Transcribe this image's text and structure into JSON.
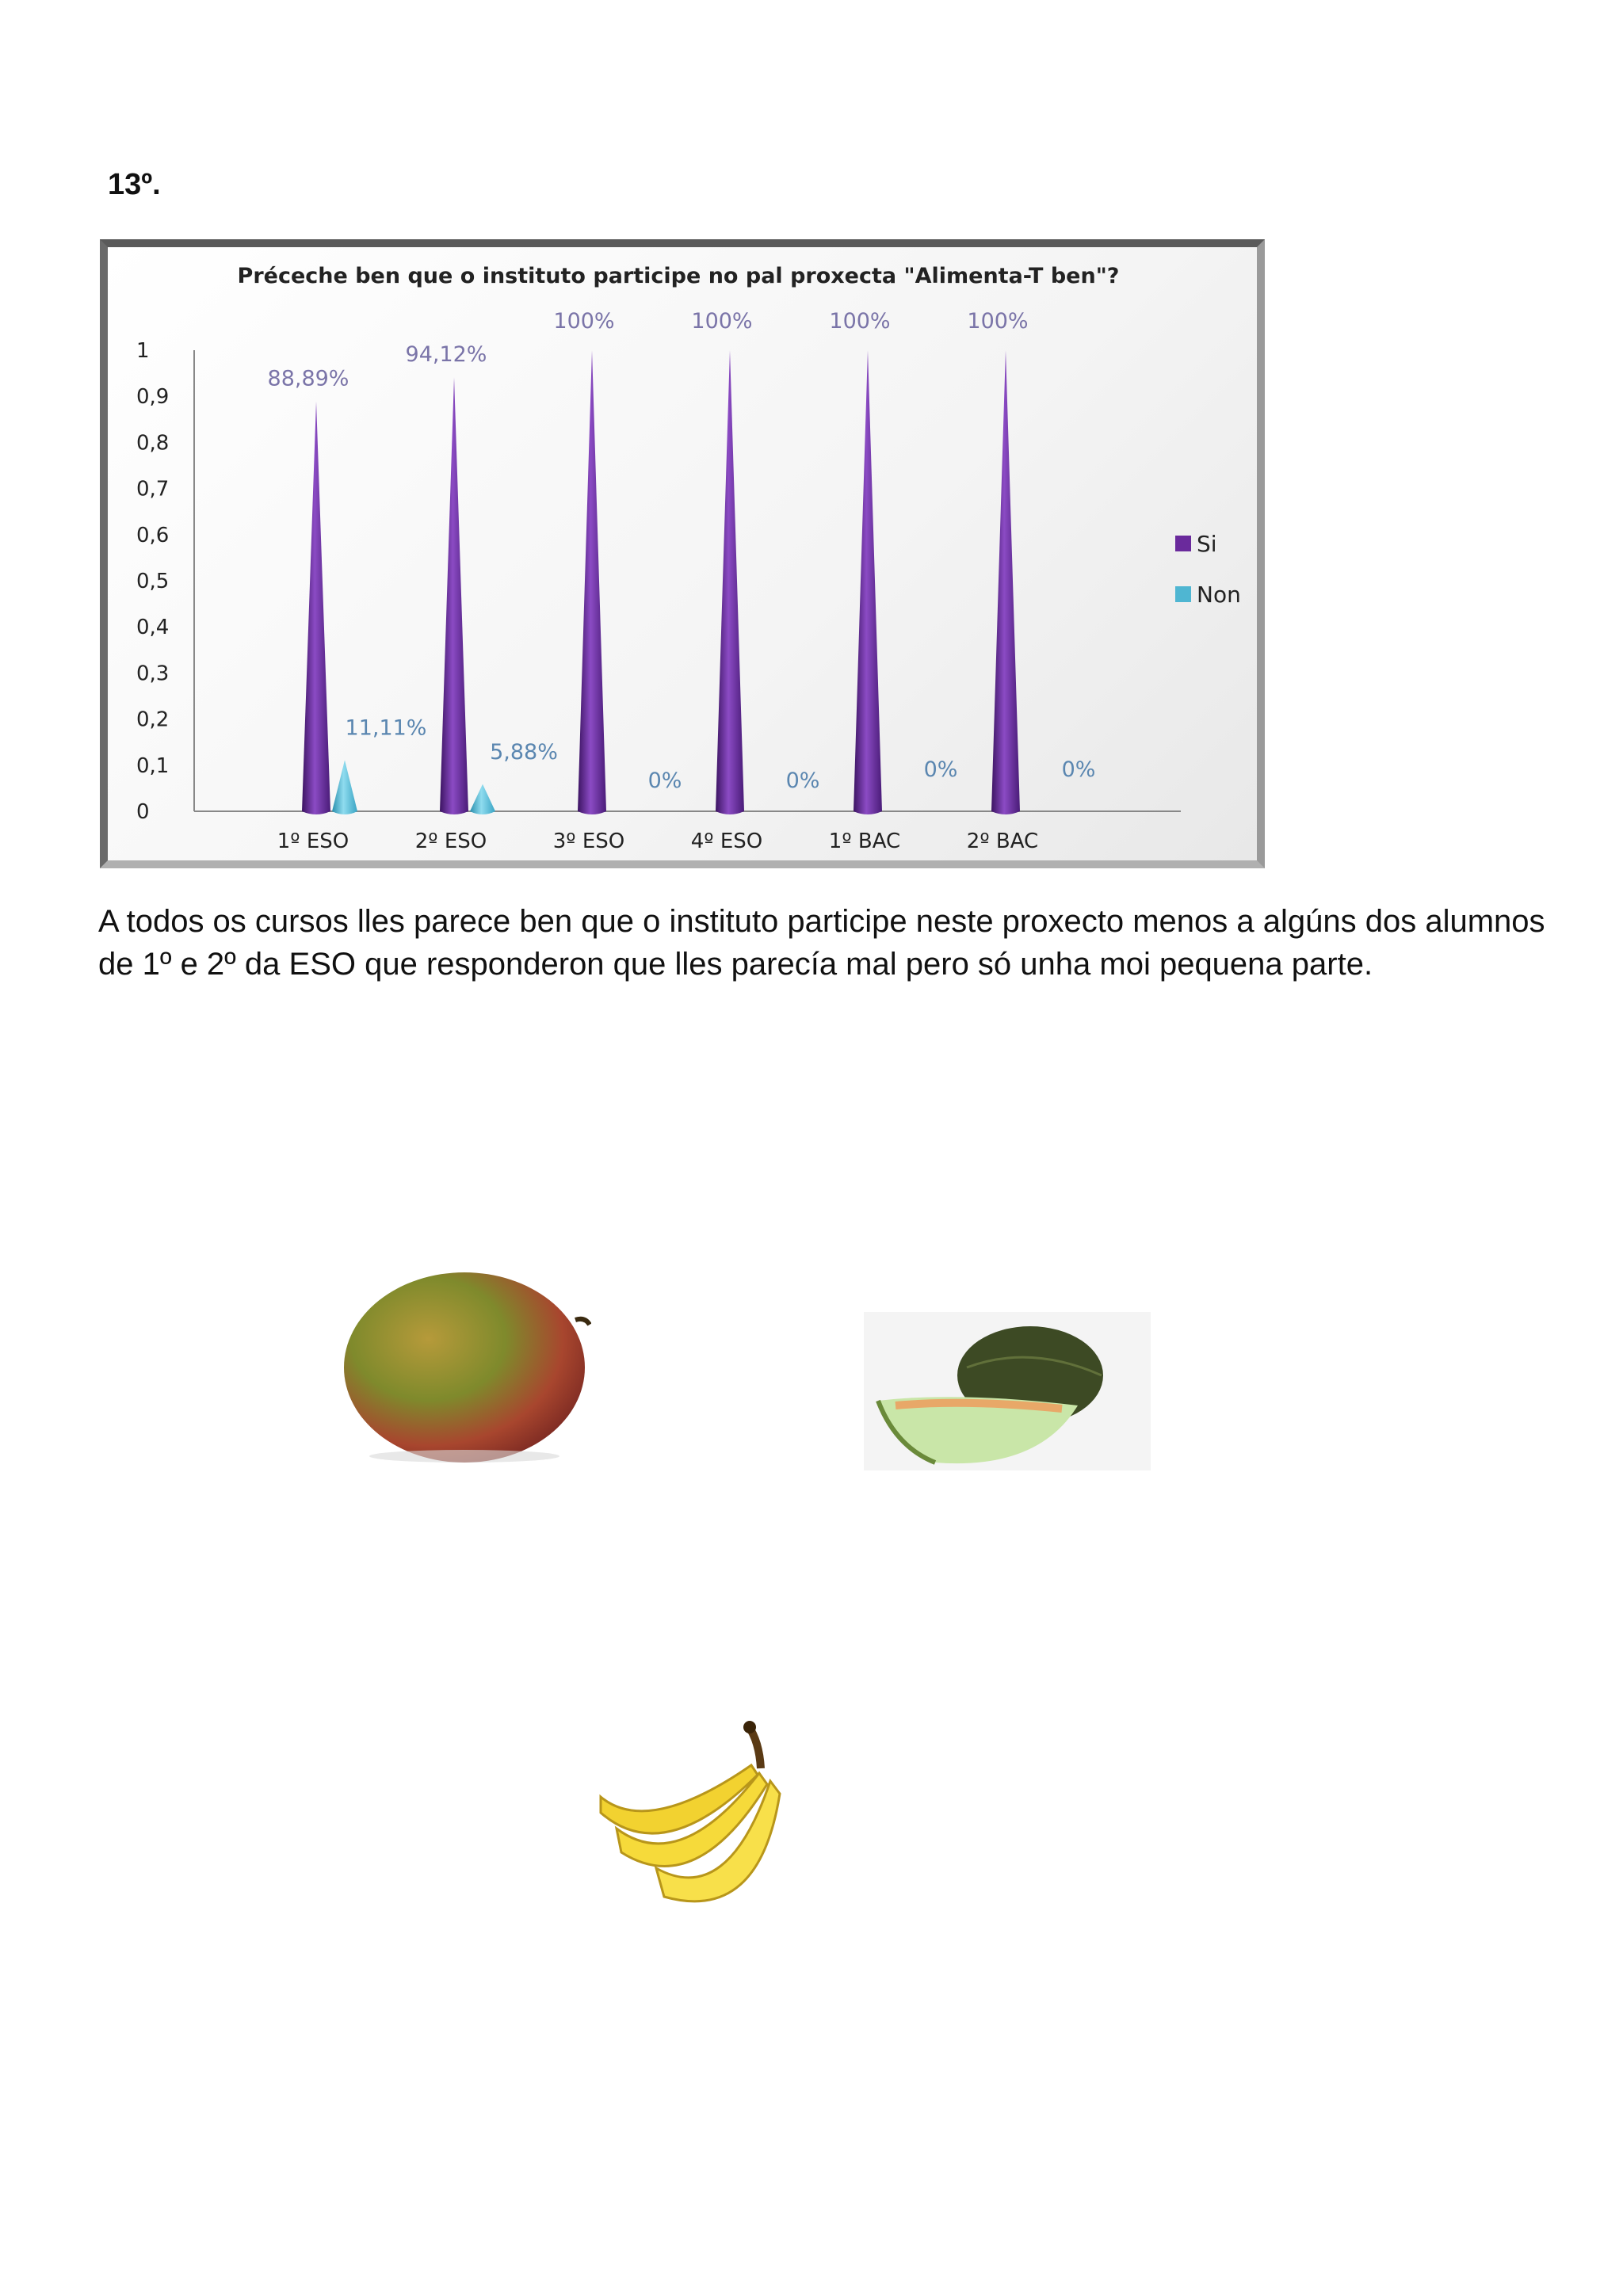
{
  "page": {
    "heading": "13º.",
    "paragraph": "A todos os cursos lles  parece ben que o instituto participe neste proxecto menos a algúns dos alumnos de 1º e 2º da ESO que responderon que lles parecía mal pero só unha moi pequena parte."
  },
  "images": {
    "mango": "mango",
    "melon": "melon",
    "bananas": "bananas"
  },
  "chart_data": {
    "type": "bar",
    "title": "Préceche ben que o instituto participe no pal proxecta \"Alimenta-T ben\"?",
    "categories": [
      "1º ESO",
      "2º ESO",
      "3º ESO",
      "4º ESO",
      "1º BAC",
      "2º BAC"
    ],
    "series": [
      {
        "name": "Si",
        "values": [
          0.8889,
          0.9412,
          1,
          1,
          1,
          1
        ],
        "labels": [
          "88,89%",
          "94,12%",
          "100%",
          "100%",
          "100%",
          "100%"
        ],
        "color": "#6a2a9c"
      },
      {
        "name": "Non",
        "values": [
          0.1111,
          0.0588,
          0,
          0,
          0,
          0
        ],
        "labels": [
          "11,11%",
          "5,88%",
          "0%",
          "0%",
          "0%",
          "0%"
        ],
        "color": "#4fb6d2"
      }
    ],
    "yticks": [
      "0",
      "0,1",
      "0,2",
      "0,3",
      "0,4",
      "0,5",
      "0,6",
      "0,7",
      "0,8",
      "0,9",
      "1"
    ],
    "ylim": [
      0,
      1
    ],
    "xlabel": "",
    "ylabel": "",
    "legend": "right"
  }
}
